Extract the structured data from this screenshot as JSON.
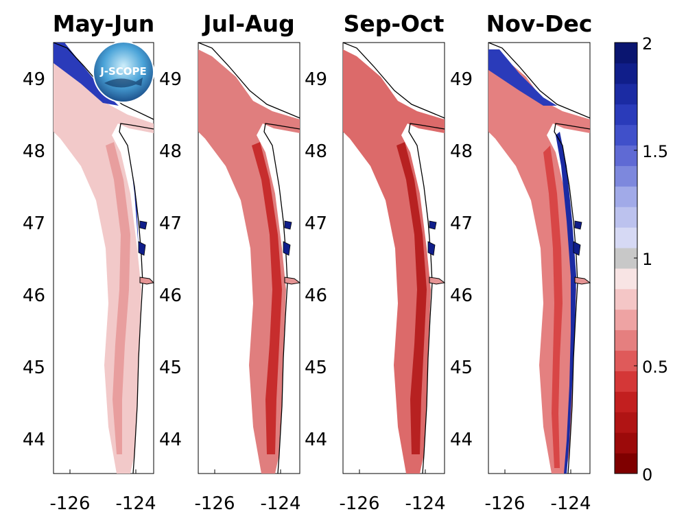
{
  "panels": [
    {
      "title": "May-Jun"
    },
    {
      "title": "Jul-Aug"
    },
    {
      "title": "Sep-Oct"
    },
    {
      "title": "Nov-Dec"
    }
  ],
  "lat_ticks": [
    "49",
    "48",
    "47",
    "46",
    "45",
    "44"
  ],
  "lon_ticks": [
    "-126",
    "-124"
  ],
  "colorbar": {
    "ticks": [
      "2",
      "1.5",
      "1",
      "0.5",
      "0"
    ],
    "colors": [
      "#7f0000",
      "#9c0a0a",
      "#b01414",
      "#c21f1f",
      "#d43737",
      "#df5a5a",
      "#e57f7f",
      "#eea3a3",
      "#f4c6c6",
      "#f8e4e4",
      "#c8c8c8",
      "#d6d9f4",
      "#bcc2ee",
      "#a1aae8",
      "#7d88dd",
      "#5f6ad4",
      "#4050ca",
      "#2a3bba",
      "#1b2ba3",
      "#101e8a",
      "#0a1570"
    ]
  },
  "logo": {
    "text": "J-SCOPE"
  }
}
